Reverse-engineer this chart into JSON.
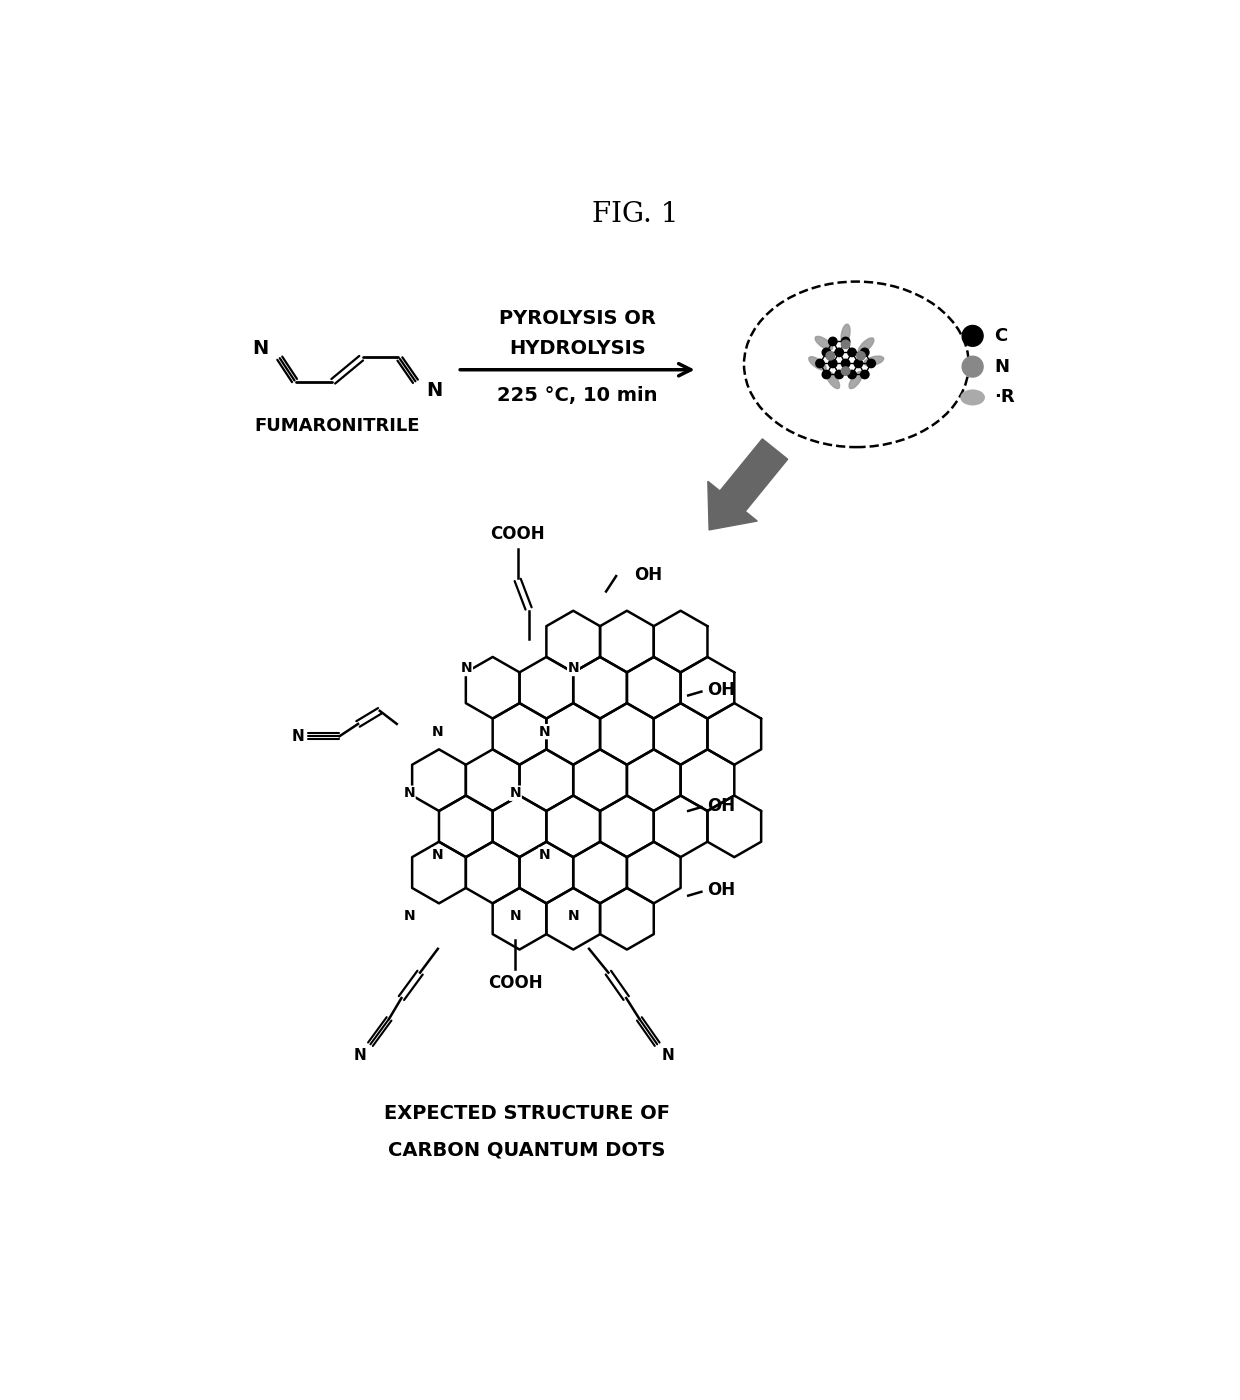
{
  "title": "FIG. 1",
  "background_color": "#ffffff",
  "text_color": "#000000",
  "fumaronitrile_label": "FUMARONITRILE",
  "reaction_line1": "PYROLYSIS OR",
  "reaction_line2": "HYDROLYSIS",
  "reaction_condition": "225 °C, 10 min",
  "bottom_label_line1": "EXPECTED STRUCTURE OF",
  "bottom_label_line2": "CARBON QUANTUM DOTS",
  "legend_C": "C",
  "legend_N": "N",
  "legend_R": "·R"
}
